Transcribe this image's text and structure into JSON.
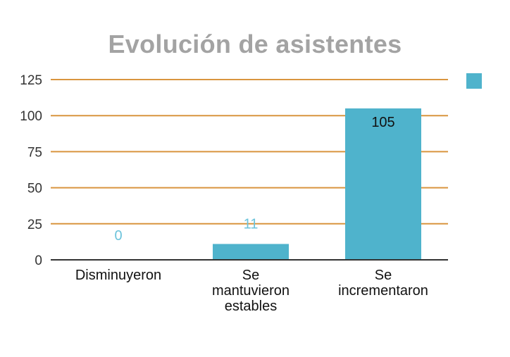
{
  "chart_data": {
    "type": "bar",
    "title": "Evolución de asistentes",
    "categories": [
      "Disminuyeron",
      "Se mantuvieron estables",
      "Se incrementaron"
    ],
    "category_lines": [
      [
        "Disminuyeron"
      ],
      [
        "Se",
        "mantuvieron",
        "estables"
      ],
      [
        "Se",
        "incrementaron"
      ]
    ],
    "values": [
      0,
      11,
      105
    ],
    "data_labels": [
      "0",
      "11",
      "105"
    ],
    "ylim": [
      0,
      125
    ],
    "yticks": [
      0,
      25,
      50,
      75,
      100,
      125
    ],
    "xlabel": "",
    "ylabel": "",
    "grid": true,
    "legend": {
      "position": "top-right",
      "entries": [
        ""
      ]
    },
    "colors": {
      "bar": "#4fb3cc",
      "grid": "#d9953f",
      "axis": "#333333",
      "title": "#a3a3a3",
      "label_outside": "#6cc3db",
      "label_inside": "#111111"
    }
  }
}
